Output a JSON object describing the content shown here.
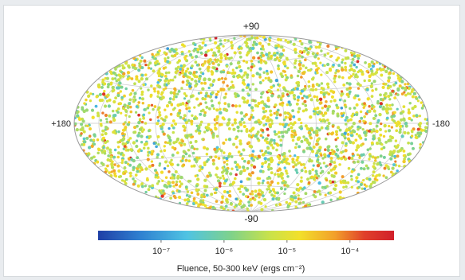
{
  "chart_data": {
    "type": "scatter",
    "projection": "aitoff-hammer all-sky",
    "title": "",
    "labels": {
      "top": "+90",
      "bottom": "-90",
      "left": "+180",
      "right": "-180"
    },
    "longitude_range": [
      180,
      -180
    ],
    "latitude_range": [
      -90,
      90
    ],
    "grid": true,
    "colorbar": {
      "label": "Fluence, 50-300 keV (ergs cm⁻²)",
      "scale": "log",
      "range": [
        1e-08,
        0.0005
      ],
      "ticks": [
        {
          "value": 1e-07,
          "label": "10⁻⁷"
        },
        {
          "value": 1e-06,
          "label": "10⁻⁶"
        },
        {
          "value": 1e-05,
          "label": "10⁻⁵"
        },
        {
          "value": 0.0001,
          "label": "10⁻⁴"
        }
      ],
      "colors": [
        "#1f3fa6",
        "#2f7fd0",
        "#4fc3e3",
        "#7fd28a",
        "#c9e24a",
        "#f2e02b",
        "#f2a02b",
        "#e0402a",
        "#d11f2a"
      ]
    },
    "points": {
      "description": "Thousands of gamma-ray burst positions distributed isotropically across the sky, colored by fluence",
      "count_approx": 2700
    }
  }
}
